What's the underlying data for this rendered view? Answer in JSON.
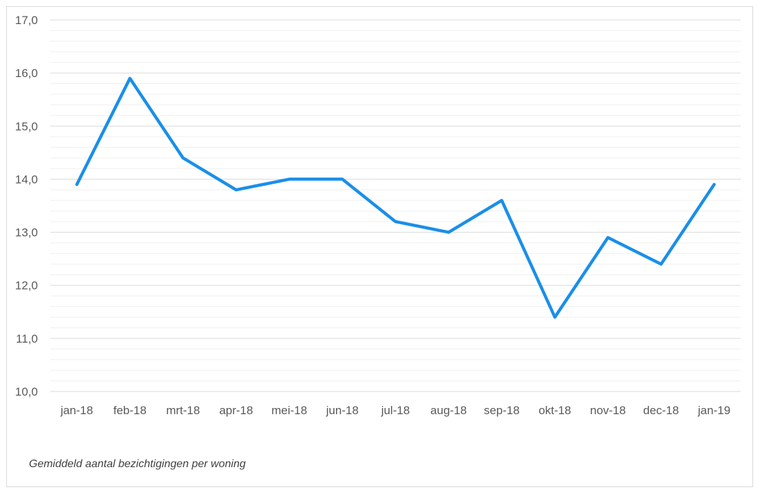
{
  "caption": "Gemiddeld aantal bezichtigingen per woning",
  "chart_data": {
    "type": "line",
    "categories": [
      "jan-18",
      "feb-18",
      "mrt-18",
      "apr-18",
      "mei-18",
      "jun-18",
      "jul-18",
      "aug-18",
      "sep-18",
      "okt-18",
      "nov-18",
      "dec-18",
      "jan-19"
    ],
    "series": [
      {
        "values": [
          13.9,
          15.9,
          14.4,
          13.8,
          14.0,
          14.0,
          13.2,
          13.0,
          13.6,
          11.4,
          12.9,
          12.4,
          13.9
        ]
      }
    ],
    "ylim": [
      10,
      17
    ],
    "yticks": [
      "10,0",
      "11,0",
      "12,0",
      "13,0",
      "14,0",
      "15,0",
      "16,0",
      "17,0"
    ],
    "minor_grid_step": 0.2,
    "grid": true,
    "line_color": "#1a8fe8",
    "grid_color": "#d9d9d9",
    "minor_grid_color": "#efefef"
  }
}
